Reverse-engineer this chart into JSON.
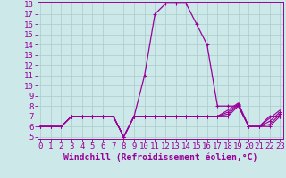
{
  "xlabel": "Windchill (Refroidissement éolien,°C)",
  "hours": [
    0,
    1,
    2,
    3,
    4,
    5,
    6,
    7,
    8,
    9,
    10,
    11,
    12,
    13,
    14,
    15,
    16,
    17,
    18,
    19,
    20,
    21,
    22,
    23
  ],
  "temp": [
    6,
    6,
    6,
    7,
    7,
    7,
    7,
    7,
    5,
    7,
    11,
    17,
    18,
    18,
    18,
    16,
    14,
    8,
    8,
    8,
    6,
    6,
    7,
    7
  ],
  "wc1": [
    6,
    6,
    6,
    7,
    7,
    7,
    7,
    7,
    5,
    7,
    7,
    7,
    7,
    7,
    7,
    7,
    7,
    7,
    7,
    8,
    6,
    6,
    6,
    7
  ],
  "wc2": [
    6,
    6,
    6,
    7,
    7,
    7,
    7,
    7,
    5,
    7,
    7,
    7,
    7,
    7,
    7,
    7,
    7,
    7,
    7.2,
    8.1,
    6,
    6,
    6.2,
    7.2
  ],
  "wc3": [
    6,
    6,
    6,
    7,
    7,
    7,
    7,
    7,
    5,
    7,
    7,
    7,
    7,
    7,
    7,
    7,
    7,
    7,
    7.4,
    8.2,
    6,
    6,
    6.5,
    7.4
  ],
  "wc4": [
    6,
    6,
    6,
    7,
    7,
    7,
    7,
    7,
    5,
    7,
    7,
    7,
    7,
    7,
    7,
    7,
    7,
    7,
    7.6,
    8.3,
    6,
    6,
    6.8,
    7.6
  ],
  "line_color": "#990099",
  "bg_color": "#cce8e8",
  "grid_color": "#aacccc",
  "ylim_min": 5,
  "ylim_max": 18,
  "yticks": [
    5,
    6,
    7,
    8,
    9,
    10,
    11,
    12,
    13,
    14,
    15,
    16,
    17,
    18
  ],
  "xticks": [
    0,
    1,
    2,
    3,
    4,
    5,
    6,
    7,
    8,
    9,
    10,
    11,
    12,
    13,
    14,
    15,
    16,
    17,
    18,
    19,
    20,
    21,
    22,
    23
  ],
  "tick_fontsize": 6.5,
  "xlabel_fontsize": 7.0
}
